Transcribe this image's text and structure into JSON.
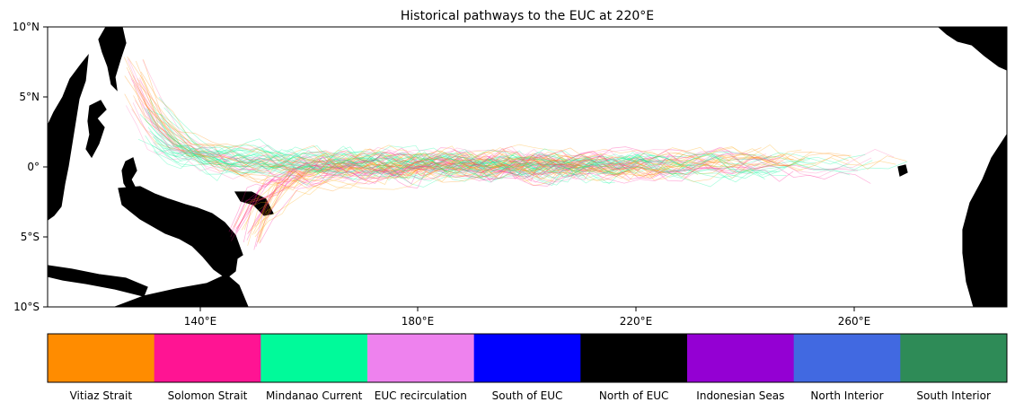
{
  "chart_data": [
    {
      "type": "line",
      "title": "Historical pathways to the EUC at 220°E",
      "x_unit": "°E",
      "y_unit": "latitude",
      "xlim": [
        112,
        288
      ],
      "ylim": [
        -10,
        10
      ],
      "x_ticks": [
        140,
        180,
        220,
        260
      ],
      "x_tick_labels": [
        "140°E",
        "180°E",
        "220°E",
        "260°E"
      ],
      "y_ticks": [
        -10,
        -5,
        0,
        5,
        10
      ],
      "y_tick_labels": [
        "10°S",
        "5°S",
        "0°",
        "5°N",
        "10°N"
      ],
      "grid": false,
      "land_color": "#d3d3d3",
      "series": [
        {
          "name": "Vitiaz Strait",
          "color": "#ff8c00"
        },
        {
          "name": "Solomon Strait",
          "color": "#ff1493"
        },
        {
          "name": "Mindanao Current",
          "color": "#00fa9a"
        },
        {
          "name": "EUC recirculation",
          "color": "#ee82ee"
        },
        {
          "name": "South of EUC",
          "color": "#0000ff"
        },
        {
          "name": "North of EUC",
          "color": "#000000"
        },
        {
          "name": "Indonesian Seas",
          "color": "#9400d3"
        },
        {
          "name": "North Interior",
          "color": "#4169e1"
        },
        {
          "name": "South Interior",
          "color": "#2e8b57"
        }
      ]
    },
    {
      "type": "legend-colorbar",
      "categories": [
        "Vitiaz Strait",
        "Solomon Strait",
        "Mindanao Current",
        "EUC recirculation",
        "South of EUC",
        "North of EUC",
        "Indonesian Seas",
        "North Interior",
        "South Interior"
      ],
      "colors": [
        "#ff8c00",
        "#ff1493",
        "#00fa9a",
        "#ee82ee",
        "#0000ff",
        "#000000",
        "#9400d3",
        "#4169e1",
        "#2e8b57"
      ]
    }
  ]
}
